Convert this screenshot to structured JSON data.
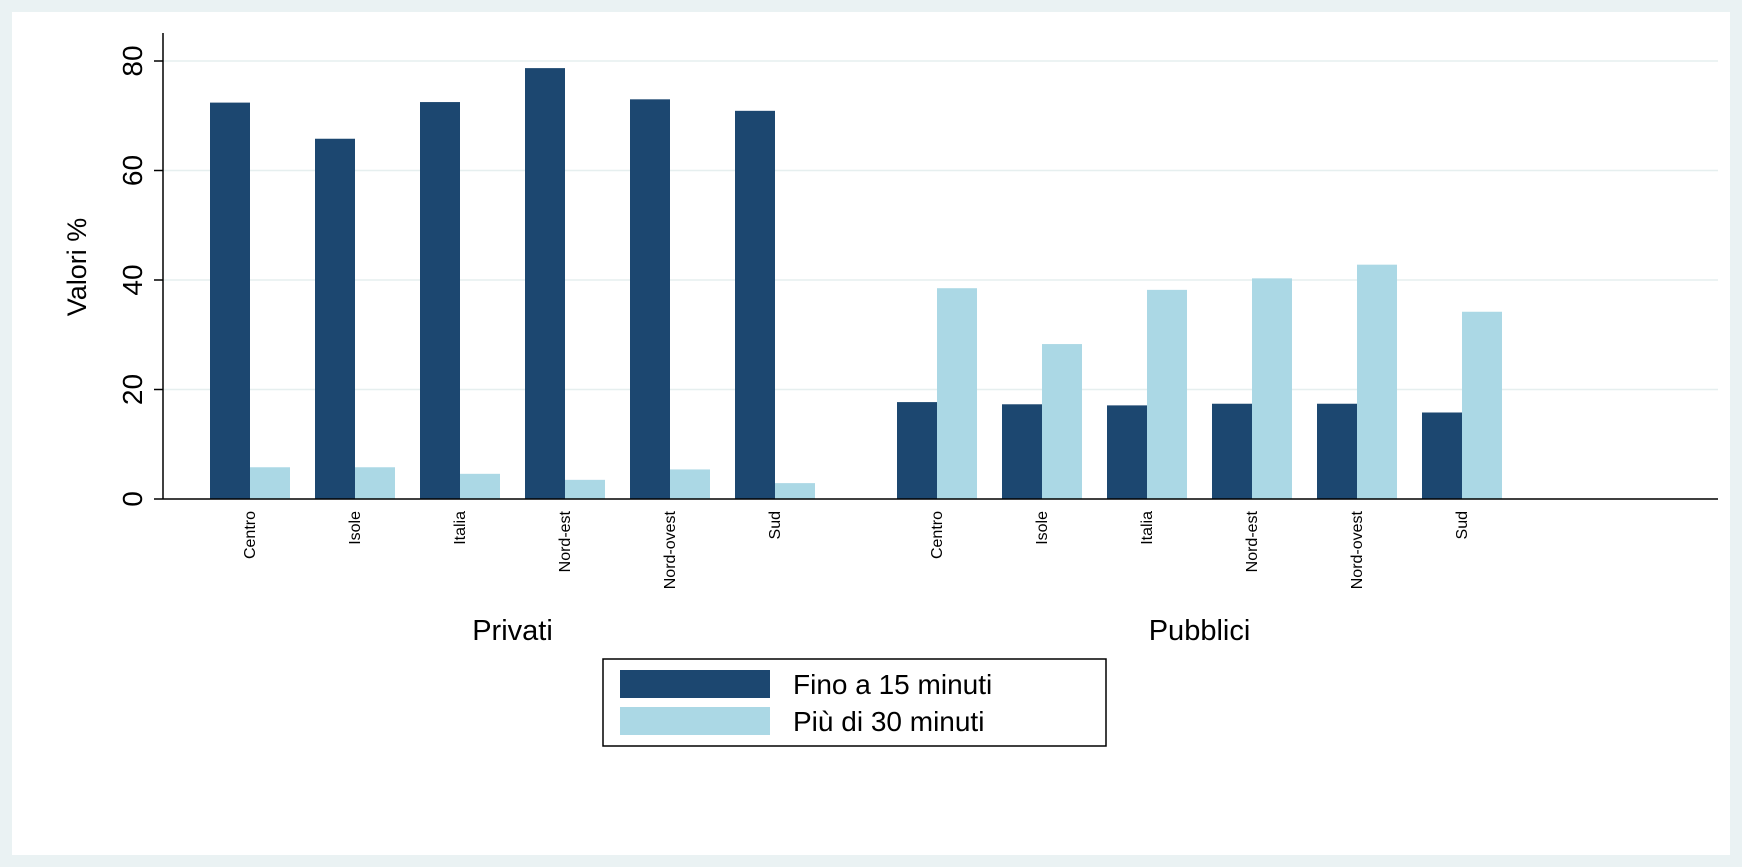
{
  "chart_data": {
    "type": "bar",
    "ylabel": "Valori %",
    "ylim": [
      0,
      85
    ],
    "yticks": [
      0,
      20,
      40,
      60,
      80
    ],
    "grid": true,
    "groups": [
      {
        "name": "Privati",
        "categories": [
          "Centro",
          "Isole",
          "Italia",
          "Nord-est",
          "Nord-ovest",
          "Sud"
        ],
        "series": [
          {
            "name": "Fino a 15 minuti",
            "values": [
              72.4,
              65.8,
              72.5,
              78.7,
              73.0,
              70.9
            ]
          },
          {
            "name": "Più di 30 minuti",
            "values": [
              5.8,
              5.8,
              4.6,
              3.5,
              5.4,
              2.9
            ]
          }
        ]
      },
      {
        "name": "Pubblici",
        "categories": [
          "Centro",
          "Isole",
          "Italia",
          "Nord-est",
          "Nord-ovest",
          "Sud"
        ],
        "series": [
          {
            "name": "Fino a 15 minuti",
            "values": [
              17.7,
              17.3,
              17.1,
              17.4,
              17.4,
              15.8
            ]
          },
          {
            "name": "Più di 30 minuti",
            "values": [
              38.5,
              28.3,
              38.2,
              40.3,
              42.8,
              34.2
            ]
          }
        ]
      }
    ],
    "legend": {
      "position": "bottom",
      "entries": [
        "Fino a 15 minuti",
        "Più di 30 minuti"
      ]
    },
    "colors": {
      "Fino a 15 minuti": "#1c4770",
      "Più di 30 minuti": "#abd8e5"
    }
  }
}
